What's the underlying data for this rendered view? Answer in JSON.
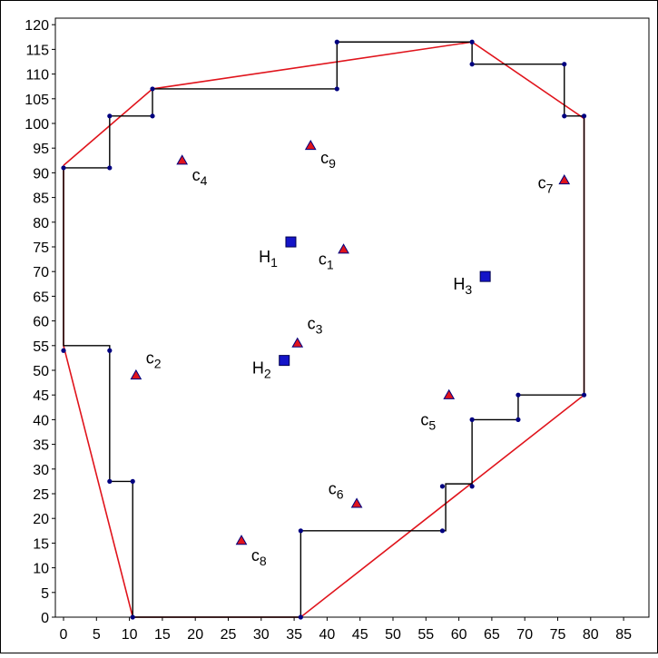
{
  "chart_data": {
    "type": "scatter",
    "title": "",
    "xlabel": "",
    "ylabel": "",
    "xlim": [
      0,
      85
    ],
    "ylim": [
      0,
      120
    ],
    "x_ticks": [
      "0",
      "5",
      "10",
      "15",
      "20",
      "25",
      "30",
      "35",
      "40",
      "45",
      "50",
      "55",
      "60",
      "65",
      "70",
      "75",
      "80",
      "85"
    ],
    "y_ticks": [
      "0",
      "5",
      "10",
      "15",
      "20",
      "25",
      "30",
      "35",
      "40",
      "45",
      "50",
      "55",
      "60",
      "65",
      "70",
      "75",
      "80",
      "85",
      "90",
      "95",
      "100",
      "105",
      "110",
      "115",
      "120"
    ],
    "grid": false,
    "legend": "none",
    "colors": {
      "staircase": "#000000",
      "hull": "#e0141c",
      "vertex": "#000080",
      "triangle_fill": "#e0141c",
      "triangle_edge": "#000080",
      "square": "#1414c8",
      "axis": "#000000"
    },
    "staircase_path": [
      [
        0,
        91
      ],
      [
        7,
        91
      ],
      [
        7,
        101.5
      ],
      [
        13.5,
        101.5
      ],
      [
        13.5,
        107
      ],
      [
        41.5,
        107
      ],
      [
        41.5,
        116.5
      ],
      [
        62,
        116.5
      ],
      [
        62,
        112
      ],
      [
        76,
        112
      ],
      [
        76,
        101.5
      ],
      [
        79,
        101.5
      ],
      [
        79,
        45
      ],
      [
        69,
        45
      ],
      [
        69,
        40
      ],
      [
        62,
        40
      ],
      [
        62,
        27
      ],
      [
        58,
        27
      ],
      [
        58,
        17.5
      ],
      [
        36,
        17.5
      ],
      [
        36,
        0
      ],
      [
        10.5,
        0
      ],
      [
        10.5,
        27.5
      ],
      [
        7,
        27.5
      ],
      [
        7,
        55
      ],
      [
        0,
        55
      ],
      [
        0,
        91
      ]
    ],
    "staircase_vertices": [
      [
        0,
        91
      ],
      [
        7,
        91
      ],
      [
        7,
        101.5
      ],
      [
        13.5,
        101.5
      ],
      [
        13.5,
        107
      ],
      [
        41.5,
        107
      ],
      [
        41.5,
        116.5
      ],
      [
        62,
        116.5
      ],
      [
        62,
        112
      ],
      [
        76,
        112
      ],
      [
        76,
        101.5
      ],
      [
        79,
        101.5
      ],
      [
        79,
        45
      ],
      [
        69,
        45
      ],
      [
        69,
        40
      ],
      [
        62,
        40
      ],
      [
        62,
        26.5
      ],
      [
        57.5,
        26.5
      ],
      [
        57.5,
        17.5
      ],
      [
        36,
        17.5
      ],
      [
        36,
        0
      ],
      [
        10.5,
        0
      ],
      [
        10.5,
        27.5
      ],
      [
        7,
        27.5
      ],
      [
        7,
        54
      ],
      [
        0,
        54
      ]
    ],
    "hull_path": [
      [
        0,
        91.5
      ],
      [
        13.5,
        107
      ],
      [
        62,
        116.5
      ],
      [
        79,
        101
      ],
      [
        79,
        45
      ],
      [
        36,
        0
      ],
      [
        17.5,
        0
      ],
      [
        10.5,
        0
      ],
      [
        0,
        55
      ],
      [
        0,
        91.5
      ]
    ],
    "customers": [
      {
        "label": "c",
        "sub": "1",
        "x": 42.5,
        "y": 74.5,
        "lx": 41,
        "ly": 72.5,
        "anchor": "end"
      },
      {
        "label": "c",
        "sub": "2",
        "x": 11,
        "y": 49,
        "lx": 12.5,
        "ly": 52.5,
        "anchor": "start"
      },
      {
        "label": "c",
        "sub": "3",
        "x": 35.5,
        "y": 55.5,
        "lx": 37,
        "ly": 59.5,
        "anchor": "start"
      },
      {
        "label": "c",
        "sub": "4",
        "x": 18,
        "y": 92.5,
        "lx": 19.5,
        "ly": 89.5,
        "anchor": "start"
      },
      {
        "label": "c",
        "sub": "5",
        "x": 58.5,
        "y": 45,
        "lx": 56.5,
        "ly": 40,
        "anchor": "end"
      },
      {
        "label": "c",
        "sub": "6",
        "x": 44.5,
        "y": 23,
        "lx": 42.5,
        "ly": 26,
        "anchor": "end"
      },
      {
        "label": "c",
        "sub": "7",
        "x": 76,
        "y": 88.5,
        "lx": 74.3,
        "ly": 88,
        "anchor": "end"
      },
      {
        "label": "c",
        "sub": "8",
        "x": 27,
        "y": 15.5,
        "lx": 28.5,
        "ly": 12.5,
        "anchor": "start"
      },
      {
        "label": "c",
        "sub": "9",
        "x": 37.5,
        "y": 95.5,
        "lx": 39,
        "ly": 93,
        "anchor": "start"
      }
    ],
    "facilities": [
      {
        "label": "H",
        "sub": "1",
        "x": 34.5,
        "y": 76,
        "lx": 32.5,
        "ly": 73,
        "anchor": "end"
      },
      {
        "label": "H",
        "sub": "2",
        "x": 33.5,
        "y": 52,
        "lx": 31.5,
        "ly": 50.5,
        "anchor": "end"
      },
      {
        "label": "H",
        "sub": "3",
        "x": 64,
        "y": 69,
        "lx": 62,
        "ly": 67.5,
        "anchor": "end"
      }
    ]
  }
}
